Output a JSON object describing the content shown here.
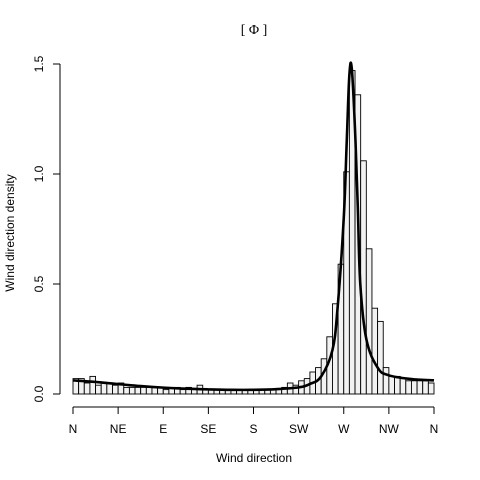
{
  "chart_data": {
    "type": "histogram",
    "title": "[ Φ ]",
    "xlabel": "Wind direction",
    "ylabel": "Wind direction density",
    "x_ticks": [
      "N",
      "NE",
      "E",
      "SE",
      "S",
      "SW",
      "W",
      "NW",
      "N"
    ],
    "xlim": [
      0,
      360
    ],
    "ylim": [
      0,
      1.5
    ],
    "y_ticks": [
      "0.0",
      "0.5",
      "1.0",
      "1.5"
    ],
    "bin_width_deg": 5.625,
    "histogram_densities": [
      0.07,
      0.07,
      0.05,
      0.08,
      0.04,
      0.05,
      0.05,
      0.04,
      0.05,
      0.03,
      0.03,
      0.03,
      0.03,
      0.03,
      0.03,
      0.03,
      0.02,
      0.03,
      0.03,
      0.02,
      0.03,
      0.02,
      0.04,
      0.02,
      0.02,
      0.02,
      0.02,
      0.02,
      0.02,
      0.02,
      0.02,
      0.02,
      0.02,
      0.02,
      0.02,
      0.02,
      0.02,
      0.03,
      0.05,
      0.04,
      0.06,
      0.07,
      0.1,
      0.12,
      0.16,
      0.26,
      0.41,
      0.59,
      1.01,
      1.47,
      1.36,
      1.06,
      0.66,
      0.39,
      0.33,
      0.12,
      0.08,
      0.08,
      0.07,
      0.06,
      0.06,
      0.06,
      0.06,
      0.05
    ],
    "density_curve": {
      "x": [
        0,
        22.5,
        45,
        67.5,
        90,
        112.5,
        135,
        157.5,
        180,
        202.5,
        225,
        236,
        247.5,
        258.75,
        264,
        270,
        273,
        275.6,
        278,
        281.25,
        284,
        286.5,
        292.5,
        303.75,
        315,
        337.5,
        360
      ],
      "y": [
        0.062,
        0.055,
        0.045,
        0.036,
        0.029,
        0.024,
        0.021,
        0.019,
        0.019,
        0.022,
        0.03,
        0.045,
        0.08,
        0.2,
        0.4,
        0.8,
        1.15,
        1.45,
        1.48,
        1.2,
        0.85,
        0.5,
        0.25,
        0.12,
        0.085,
        0.068,
        0.062
      ]
    }
  }
}
